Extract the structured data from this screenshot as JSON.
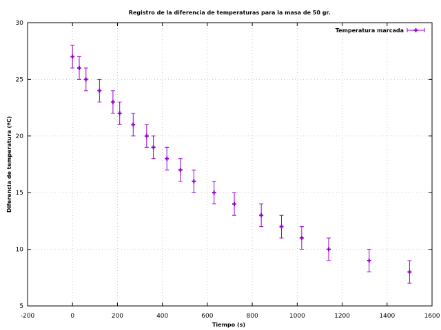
{
  "chart_data": {
    "type": "scatter",
    "title": "Registro de la diferencia de temperaturas para la masa de 50 gr.",
    "xlabel": "Tiempo (s)",
    "ylabel": "Diferencia de temperatura (ºC)",
    "xlim": [
      -200,
      1600
    ],
    "ylim": [
      5,
      30
    ],
    "xticks": [
      -200,
      0,
      200,
      400,
      600,
      800,
      1000,
      1200,
      1400,
      1600
    ],
    "yticks": [
      5,
      10,
      15,
      20,
      25,
      30
    ],
    "grid": true,
    "legend_position": "top-right",
    "series": [
      {
        "name": "Temperatura marcada",
        "color": "#9400d3",
        "x": [
          0,
          30,
          60,
          120,
          180,
          210,
          270,
          330,
          360,
          420,
          480,
          540,
          630,
          720,
          840,
          930,
          1020,
          1140,
          1320,
          1500
        ],
        "y": [
          27,
          26,
          25,
          24,
          23,
          22,
          21,
          20,
          19,
          18,
          17,
          16,
          15,
          14,
          13,
          12,
          11,
          10,
          9,
          8
        ],
        "y_error": 1,
        "x_error": 0
      }
    ]
  }
}
